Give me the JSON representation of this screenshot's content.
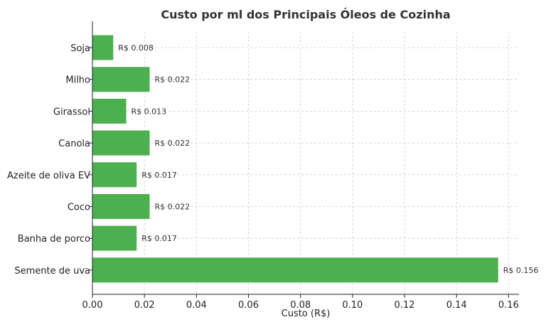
{
  "chart_data": {
    "type": "bar",
    "orientation": "horizontal",
    "title": "Custo por ml dos Principais Óleos de Cozinha",
    "xlabel": "Custo (R$)",
    "ylabel": "",
    "categories": [
      "Soja",
      "Milho",
      "Girassol",
      "Canola",
      "Azeite de oliva EV",
      "Coco",
      "Banha de porco",
      "Semente de uva"
    ],
    "values": [
      0.008,
      0.022,
      0.013,
      0.022,
      0.017,
      0.022,
      0.017,
      0.156
    ],
    "data_labels": [
      "R$ 0.008",
      "R$ 0.022",
      "R$ 0.013",
      "R$ 0.022",
      "R$ 0.017",
      "R$ 0.022",
      "R$ 0.017",
      "R$ 0.156"
    ],
    "xlim": [
      0,
      0.164
    ],
    "xticks": [
      0.0,
      0.02,
      0.04,
      0.06,
      0.08,
      0.1,
      0.12,
      0.14,
      0.16
    ],
    "xtick_labels": [
      "0.00",
      "0.02",
      "0.04",
      "0.06",
      "0.08",
      "0.10",
      "0.12",
      "0.14",
      "0.16"
    ],
    "grid": true,
    "bar_color": "#4caf50"
  }
}
